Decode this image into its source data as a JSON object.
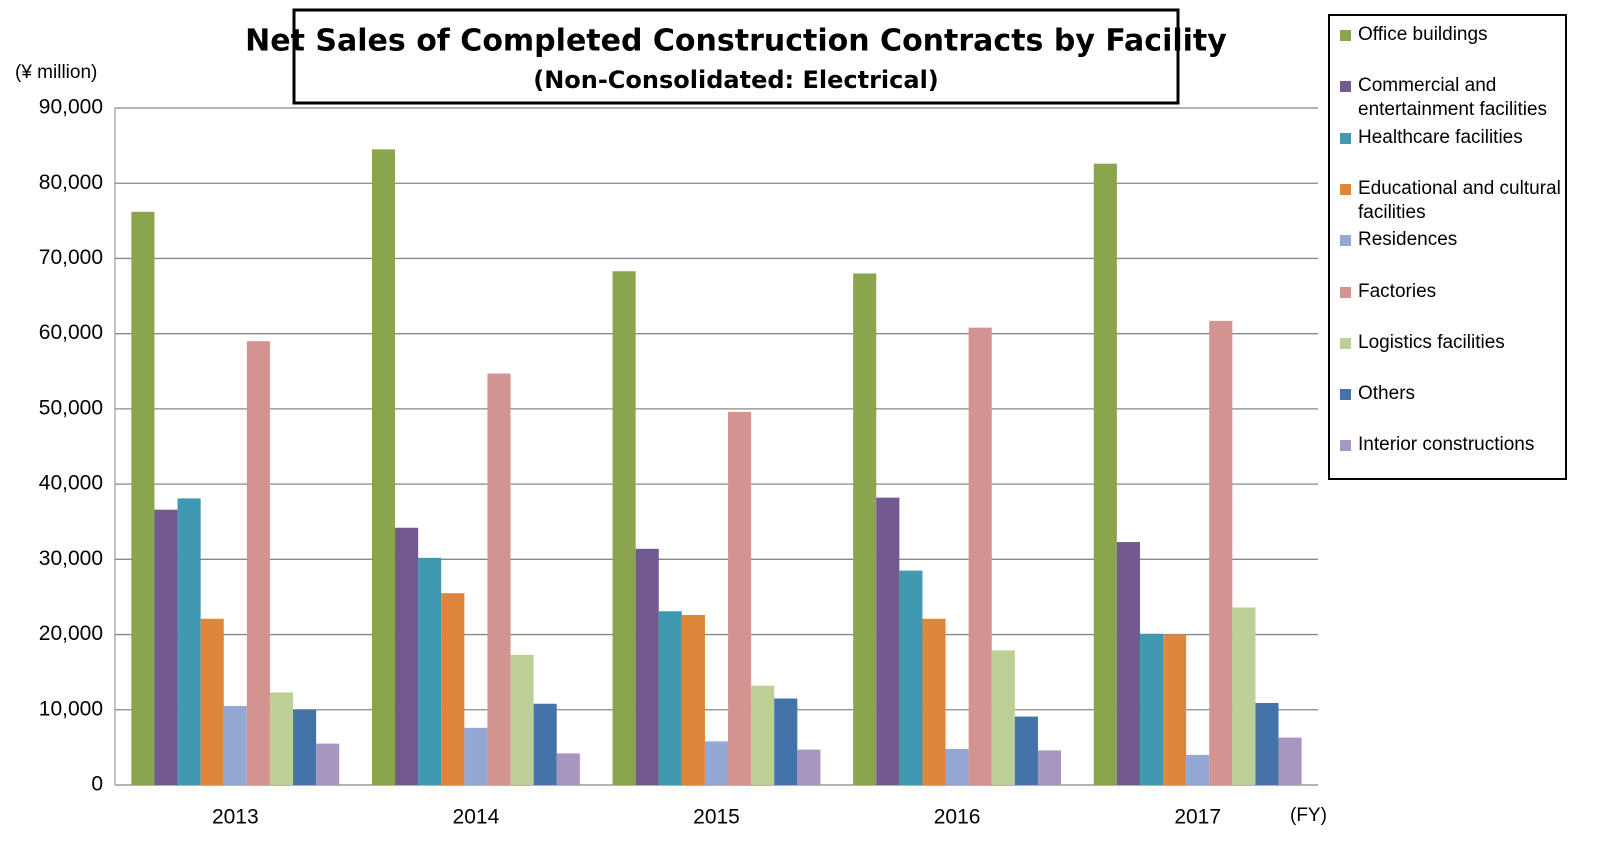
{
  "chart_data": {
    "type": "bar",
    "title": "Net Sales of Completed Construction Contracts by Facility",
    "subtitle": "(Non-Consolidated: Electrical)",
    "y_label": "(¥ million)",
    "x_label": "(FY)",
    "categories": [
      "2013",
      "2014",
      "2015",
      "2016",
      "2017"
    ],
    "series": [
      {
        "name": "Office buildings",
        "color": "#8aa54d",
        "values": [
          76200,
          84500,
          68300,
          68000,
          82600
        ]
      },
      {
        "name": "Commercial and entertainment facilities",
        "color": "#725a90",
        "values": [
          36600,
          34200,
          31400,
          38200,
          32300
        ]
      },
      {
        "name": "Healthcare facilities",
        "color": "#4199b1",
        "values": [
          38100,
          30200,
          23100,
          28500,
          20100
        ]
      },
      {
        "name": "Educational and cultural facilities",
        "color": "#de863c",
        "values": [
          22100,
          25500,
          22600,
          22100,
          20000
        ]
      },
      {
        "name": "Residences",
        "color": "#93a9d4",
        "values": [
          10500,
          7600,
          5800,
          4800,
          4000
        ]
      },
      {
        "name": "Factories",
        "color": "#d39391",
        "values": [
          59000,
          54700,
          49600,
          60800,
          61700
        ]
      },
      {
        "name": "Logistics facilities",
        "color": "#bccf97",
        "values": [
          12300,
          17300,
          13200,
          17900,
          23600
        ]
      },
      {
        "name": "Others",
        "color": "#4473a9",
        "values": [
          10000,
          10800,
          11500,
          9100,
          10900
        ]
      },
      {
        "name": "Interior constructions",
        "color": "#a796bf",
        "values": [
          5500,
          4200,
          4700,
          4600,
          6300
        ]
      }
    ],
    "ylim": [
      0,
      90000
    ],
    "yticks": [
      0,
      {
        "value": 10000,
        "label": "10,000"
      },
      {
        "value": 20000,
        "label": "20,000"
      },
      {
        "value": 30000,
        "label": "30,000"
      },
      {
        "value": 40000,
        "label": "40,000"
      },
      {
        "value": 50000,
        "label": "50,000"
      },
      {
        "value": 60000,
        "label": "60,000"
      },
      {
        "value": 70000,
        "label": "70,000"
      },
      {
        "value": 80000,
        "label": "80,000"
      },
      {
        "value": 90000,
        "label": "90,000"
      }
    ],
    "grid": true,
    "legend": "right"
  }
}
